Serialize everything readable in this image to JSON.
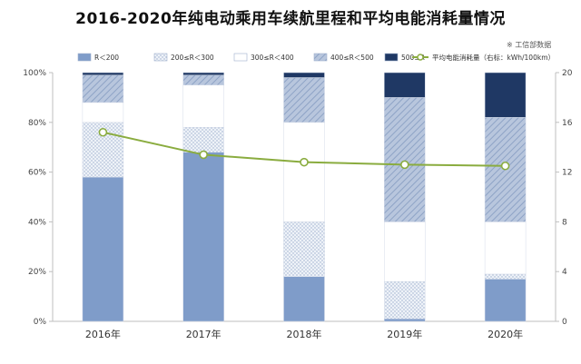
{
  "title": "2016-2020年纯电动乘用车续航里程和平均电能消耗量情况",
  "source_note": "※ 工信部数据",
  "chart_data": {
    "type": "bar",
    "stacked": true,
    "categories": [
      "2016年",
      "2017年",
      "2018年",
      "2019年",
      "2020年"
    ],
    "series": [
      {
        "name": "R＜200",
        "values": [
          58,
          68,
          18,
          1,
          17
        ],
        "color": "#7f9cc9",
        "pattern": "solid"
      },
      {
        "name": "200≤R＜300",
        "values": [
          22,
          10,
          22,
          15,
          2
        ],
        "color": "#c8d3e4",
        "pattern": "dots"
      },
      {
        "name": "300≤R＜400",
        "values": [
          8,
          17,
          40,
          24,
          21
        ],
        "color": "#ffffff",
        "pattern": "none"
      },
      {
        "name": "400≤R＜500",
        "values": [
          11,
          4,
          18,
          50,
          42
        ],
        "color": "#a9b9d4",
        "pattern": "hatch"
      },
      {
        "name": "500≤R",
        "values": [
          1,
          1,
          2,
          10,
          18
        ],
        "color": "#1f3864",
        "pattern": "solid"
      }
    ],
    "line_series": {
      "name": "平均电能消耗量（右标：kWh/100km）",
      "values": [
        15.2,
        13.4,
        12.8,
        12.6,
        12.5
      ],
      "color": "#8aac3f"
    },
    "y_left": {
      "ticks": [
        "0%",
        "20%",
        "40%",
        "60%",
        "80%",
        "100%"
      ],
      "range": [
        0,
        100
      ]
    },
    "y_right": {
      "ticks": [
        "0",
        "4",
        "8",
        "12",
        "16",
        "20"
      ],
      "range": [
        0,
        20
      ]
    }
  }
}
